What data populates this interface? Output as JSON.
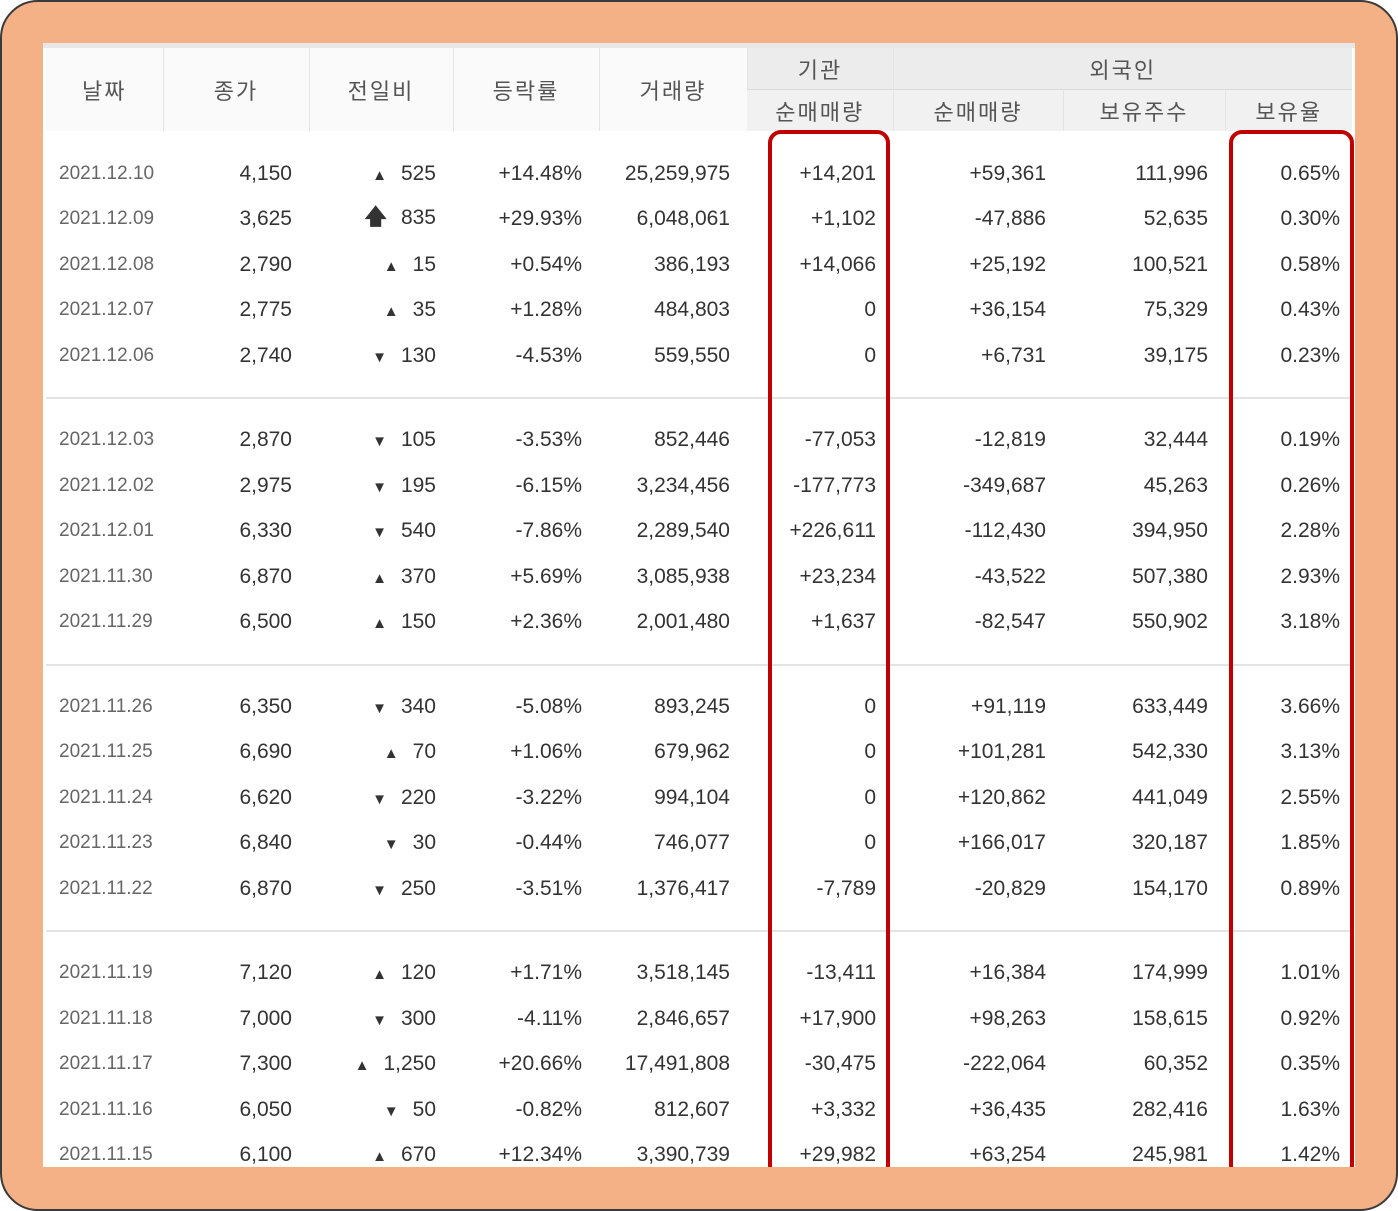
{
  "columns": {
    "date": "날짜",
    "close": "종가",
    "diff": "전일비",
    "rate": "등락률",
    "volume": "거래량",
    "institution_group": "기관",
    "foreign_group": "외국인",
    "inst_net": "순매매량",
    "foreign_net": "순매매량",
    "foreign_holding": "보유주수",
    "foreign_ratio": "보유율"
  },
  "colors": {
    "up": "#e02020",
    "down": "#2a6ee0",
    "highlight": "#c00000",
    "frame": "#f3b185"
  },
  "groups": [
    [
      {
        "date": "2021.12.10",
        "close": "4,150",
        "dir": "up",
        "arrow": "▲",
        "diff": "525",
        "rate": "+14.48%",
        "volume": "25,259,975",
        "inst": "+14,201",
        "fnet": "+59,361",
        "fhold": "111,996",
        "fratio": "0.65%"
      },
      {
        "date": "2021.12.09",
        "close": "3,625",
        "dir": "up",
        "arrow": "🡅",
        "diff": "835",
        "rate": "+29.93%",
        "volume": "6,048,061",
        "inst": "+1,102",
        "fnet": "-47,886",
        "fhold": "52,635",
        "fratio": "0.30%"
      },
      {
        "date": "2021.12.08",
        "close": "2,790",
        "dir": "up",
        "arrow": "▲",
        "diff": "15",
        "rate": "+0.54%",
        "volume": "386,193",
        "inst": "+14,066",
        "fnet": "+25,192",
        "fhold": "100,521",
        "fratio": "0.58%"
      },
      {
        "date": "2021.12.07",
        "close": "2,775",
        "dir": "up",
        "arrow": "▲",
        "diff": "35",
        "rate": "+1.28%",
        "volume": "484,803",
        "inst": "0",
        "fnet": "+36,154",
        "fhold": "75,329",
        "fratio": "0.43%"
      },
      {
        "date": "2021.12.06",
        "close": "2,740",
        "dir": "down",
        "arrow": "▼",
        "diff": "130",
        "rate": "-4.53%",
        "volume": "559,550",
        "inst": "0",
        "fnet": "+6,731",
        "fhold": "39,175",
        "fratio": "0.23%"
      }
    ],
    [
      {
        "date": "2021.12.03",
        "close": "2,870",
        "dir": "down",
        "arrow": "▼",
        "diff": "105",
        "rate": "-3.53%",
        "volume": "852,446",
        "inst": "-77,053",
        "fnet": "-12,819",
        "fhold": "32,444",
        "fratio": "0.19%"
      },
      {
        "date": "2021.12.02",
        "close": "2,975",
        "dir": "down",
        "arrow": "▼",
        "diff": "195",
        "rate": "-6.15%",
        "volume": "3,234,456",
        "inst": "-177,773",
        "fnet": "-349,687",
        "fhold": "45,263",
        "fratio": "0.26%"
      },
      {
        "date": "2021.12.01",
        "close": "6,330",
        "dir": "down",
        "arrow": "▼",
        "diff": "540",
        "rate": "-7.86%",
        "volume": "2,289,540",
        "inst": "+226,611",
        "fnet": "-112,430",
        "fhold": "394,950",
        "fratio": "2.28%"
      },
      {
        "date": "2021.11.30",
        "close": "6,870",
        "dir": "up",
        "arrow": "▲",
        "diff": "370",
        "rate": "+5.69%",
        "volume": "3,085,938",
        "inst": "+23,234",
        "fnet": "-43,522",
        "fhold": "507,380",
        "fratio": "2.93%"
      },
      {
        "date": "2021.11.29",
        "close": "6,500",
        "dir": "up",
        "arrow": "▲",
        "diff": "150",
        "rate": "+2.36%",
        "volume": "2,001,480",
        "inst": "+1,637",
        "fnet": "-82,547",
        "fhold": "550,902",
        "fratio": "3.18%"
      }
    ],
    [
      {
        "date": "2021.11.26",
        "close": "6,350",
        "dir": "down",
        "arrow": "▼",
        "diff": "340",
        "rate": "-5.08%",
        "volume": "893,245",
        "inst": "0",
        "fnet": "+91,119",
        "fhold": "633,449",
        "fratio": "3.66%"
      },
      {
        "date": "2021.11.25",
        "close": "6,690",
        "dir": "up",
        "arrow": "▲",
        "diff": "70",
        "rate": "+1.06%",
        "volume": "679,962",
        "inst": "0",
        "fnet": "+101,281",
        "fhold": "542,330",
        "fratio": "3.13%"
      },
      {
        "date": "2021.11.24",
        "close": "6,620",
        "dir": "down",
        "arrow": "▼",
        "diff": "220",
        "rate": "-3.22%",
        "volume": "994,104",
        "inst": "0",
        "fnet": "+120,862",
        "fhold": "441,049",
        "fratio": "2.55%"
      },
      {
        "date": "2021.11.23",
        "close": "6,840",
        "dir": "down",
        "arrow": "▼",
        "diff": "30",
        "rate": "-0.44%",
        "volume": "746,077",
        "inst": "0",
        "fnet": "+166,017",
        "fhold": "320,187",
        "fratio": "1.85%"
      },
      {
        "date": "2021.11.22",
        "close": "6,870",
        "dir": "down",
        "arrow": "▼",
        "diff": "250",
        "rate": "-3.51%",
        "volume": "1,376,417",
        "inst": "-7,789",
        "fnet": "-20,829",
        "fhold": "154,170",
        "fratio": "0.89%"
      }
    ],
    [
      {
        "date": "2021.11.19",
        "close": "7,120",
        "dir": "up",
        "arrow": "▲",
        "diff": "120",
        "rate": "+1.71%",
        "volume": "3,518,145",
        "inst": "-13,411",
        "fnet": "+16,384",
        "fhold": "174,999",
        "fratio": "1.01%"
      },
      {
        "date": "2021.11.18",
        "close": "7,000",
        "dir": "down",
        "arrow": "▼",
        "diff": "300",
        "rate": "-4.11%",
        "volume": "2,846,657",
        "inst": "+17,900",
        "fnet": "+98,263",
        "fhold": "158,615",
        "fratio": "0.92%"
      },
      {
        "date": "2021.11.17",
        "close": "7,300",
        "dir": "up",
        "arrow": "▲",
        "diff": "1,250",
        "rate": "+20.66%",
        "volume": "17,491,808",
        "inst": "-30,475",
        "fnet": "-222,064",
        "fhold": "60,352",
        "fratio": "0.35%"
      },
      {
        "date": "2021.11.16",
        "close": "6,050",
        "dir": "down",
        "arrow": "▼",
        "diff": "50",
        "rate": "-0.82%",
        "volume": "812,607",
        "inst": "+3,332",
        "fnet": "+36,435",
        "fhold": "282,416",
        "fratio": "1.63%"
      },
      {
        "date": "2021.11.15",
        "close": "6,100",
        "dir": "up",
        "arrow": "▲",
        "diff": "670",
        "rate": "+12.34%",
        "volume": "3,390,739",
        "inst": "+29,982",
        "fnet": "+63,254",
        "fhold": "245,981",
        "fratio": "1.42%"
      }
    ]
  ]
}
